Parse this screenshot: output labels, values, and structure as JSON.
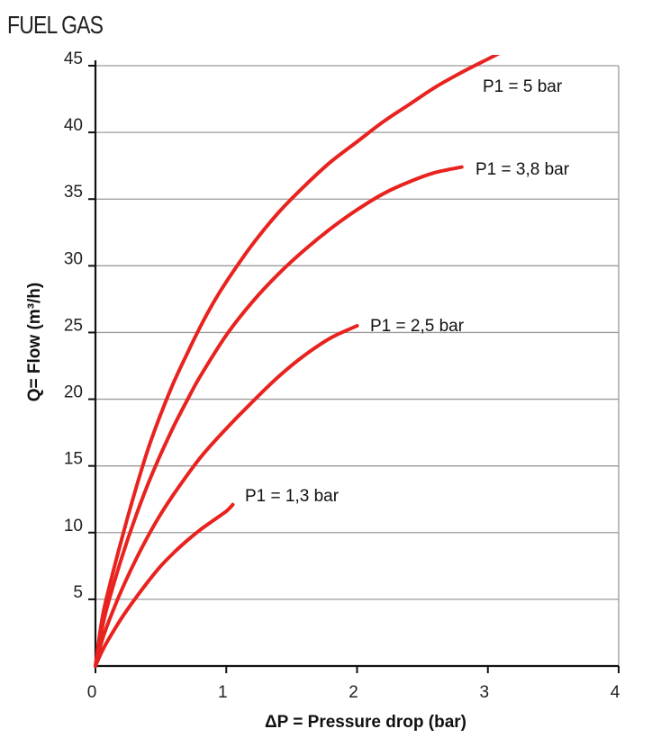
{
  "chart_data": {
    "type": "line",
    "title": "FUEL GAS",
    "xlabel": "ΔP = Pressure drop (bar)",
    "ylabel": "Q= Flow (m³/h)",
    "xlim": [
      0,
      4
    ],
    "ylim": [
      0,
      45
    ],
    "x_ticks": [
      "0",
      "1",
      "2",
      "3",
      "4"
    ],
    "y_ticks": [
      "5",
      "10",
      "15",
      "20",
      "25",
      "30",
      "35",
      "40",
      "45"
    ],
    "grid": "horizontal",
    "line_color": "#e8231f",
    "series": [
      {
        "name": "P1 = 5 bar",
        "x": [
          0,
          0.05,
          0.1,
          0.2,
          0.3,
          0.4,
          0.5,
          0.6,
          0.7,
          0.8,
          0.9,
          1.0,
          1.2,
          1.4,
          1.6,
          1.8,
          2.0,
          2.2,
          2.4,
          2.6,
          2.8,
          3.0,
          3.1
        ],
        "values": [
          0,
          3.5,
          5.7,
          9.5,
          13.0,
          16.2,
          18.9,
          21.3,
          23.4,
          25.4,
          27.2,
          28.8,
          31.6,
          34.0,
          36.0,
          37.8,
          39.3,
          40.8,
          42.1,
          43.4,
          44.5,
          45.5,
          46.0
        ]
      },
      {
        "name": "P1 = 3,8 bar",
        "x": [
          0,
          0.05,
          0.1,
          0.2,
          0.3,
          0.4,
          0.5,
          0.6,
          0.7,
          0.8,
          1.0,
          1.2,
          1.4,
          1.6,
          1.8,
          2.0,
          2.2,
          2.4,
          2.6,
          2.8
        ],
        "values": [
          0,
          2.8,
          4.8,
          8.1,
          11.0,
          13.6,
          15.9,
          18.0,
          19.9,
          21.7,
          24.8,
          27.3,
          29.4,
          31.2,
          32.8,
          34.2,
          35.4,
          36.3,
          37.0,
          37.4
        ]
      },
      {
        "name": "P1 = 2,5 bar",
        "x": [
          0,
          0.05,
          0.1,
          0.2,
          0.3,
          0.4,
          0.5,
          0.6,
          0.8,
          1.0,
          1.2,
          1.4,
          1.6,
          1.8,
          2.0
        ],
        "values": [
          0,
          1.9,
          3.3,
          5.7,
          7.8,
          9.7,
          11.4,
          12.9,
          15.6,
          17.8,
          19.8,
          21.7,
          23.3,
          24.6,
          25.5
        ]
      },
      {
        "name": "P1 = 1,3 bar",
        "x": [
          0,
          0.05,
          0.1,
          0.2,
          0.3,
          0.4,
          0.5,
          0.6,
          0.7,
          0.8,
          0.9,
          1.0,
          1.05
        ],
        "values": [
          0,
          1.1,
          2.0,
          3.6,
          5.0,
          6.3,
          7.5,
          8.5,
          9.4,
          10.2,
          10.9,
          11.6,
          12.1
        ]
      }
    ]
  }
}
